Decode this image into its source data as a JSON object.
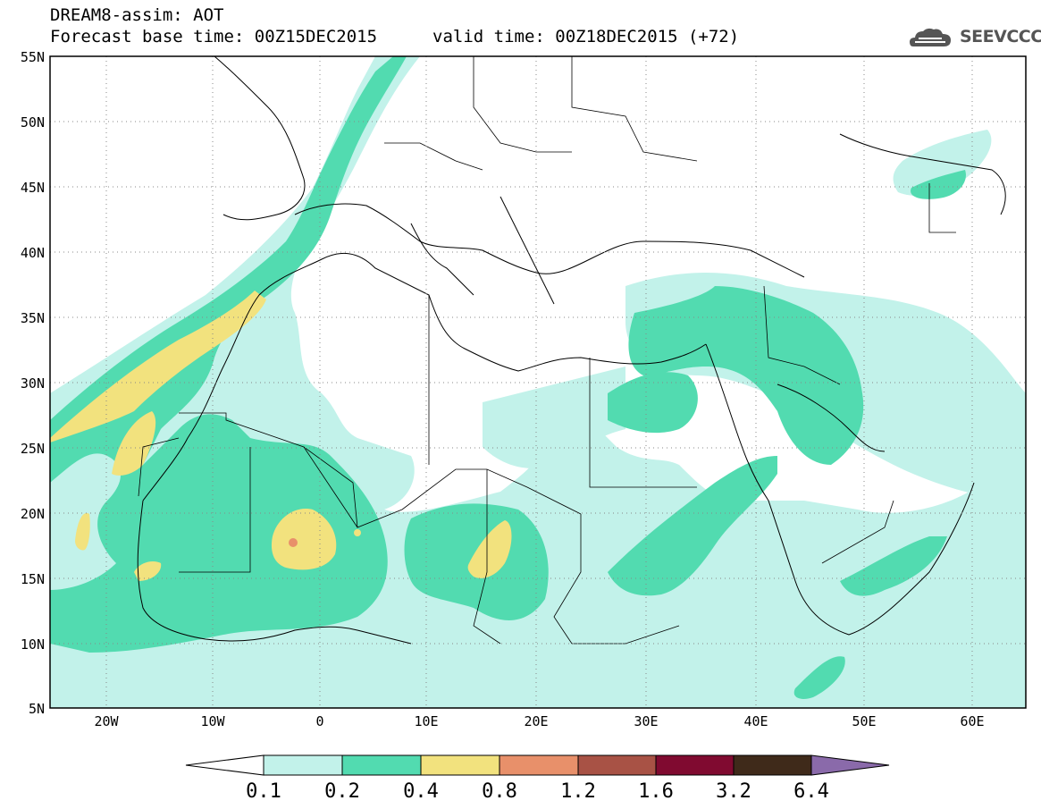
{
  "title": {
    "line1": "DREAM8-assim: AOT",
    "base_time": "Forecast base time: 00Z15DEC2015",
    "valid_time": "valid time: 00Z18DEC2015 (+72)"
  },
  "logo": {
    "text": "SEEVCCC",
    "icon": "cloud-icon"
  },
  "map": {
    "lat_labels": [
      "55N",
      "50N",
      "45N",
      "40N",
      "35N",
      "30N",
      "25N",
      "20N",
      "15N",
      "10N",
      "5N"
    ],
    "lon_labels": [
      "20W",
      "10W",
      "0",
      "10E",
      "20E",
      "30E",
      "40E",
      "50E",
      "60E"
    ],
    "lat_range": [
      5,
      55
    ],
    "lon_range": [
      -25,
      65
    ],
    "grid": true
  },
  "colorbar": {
    "labels": [
      "0.1",
      "0.2",
      "0.4",
      "0.8",
      "1.2",
      "1.6",
      "3.2",
      "6.4"
    ],
    "colors": [
      "#ffffff",
      "#c2f2ea",
      "#52dbb0",
      "#f2e27e",
      "#e8906a",
      "#a85245",
      "#800a30",
      "#3f2a1a",
      "#8a6aaa"
    ]
  },
  "shading_colors": {
    "level1": "#c2f2ea",
    "level2": "#52dbb0",
    "level3": "#f2e27e",
    "level4": "#e8906a"
  }
}
